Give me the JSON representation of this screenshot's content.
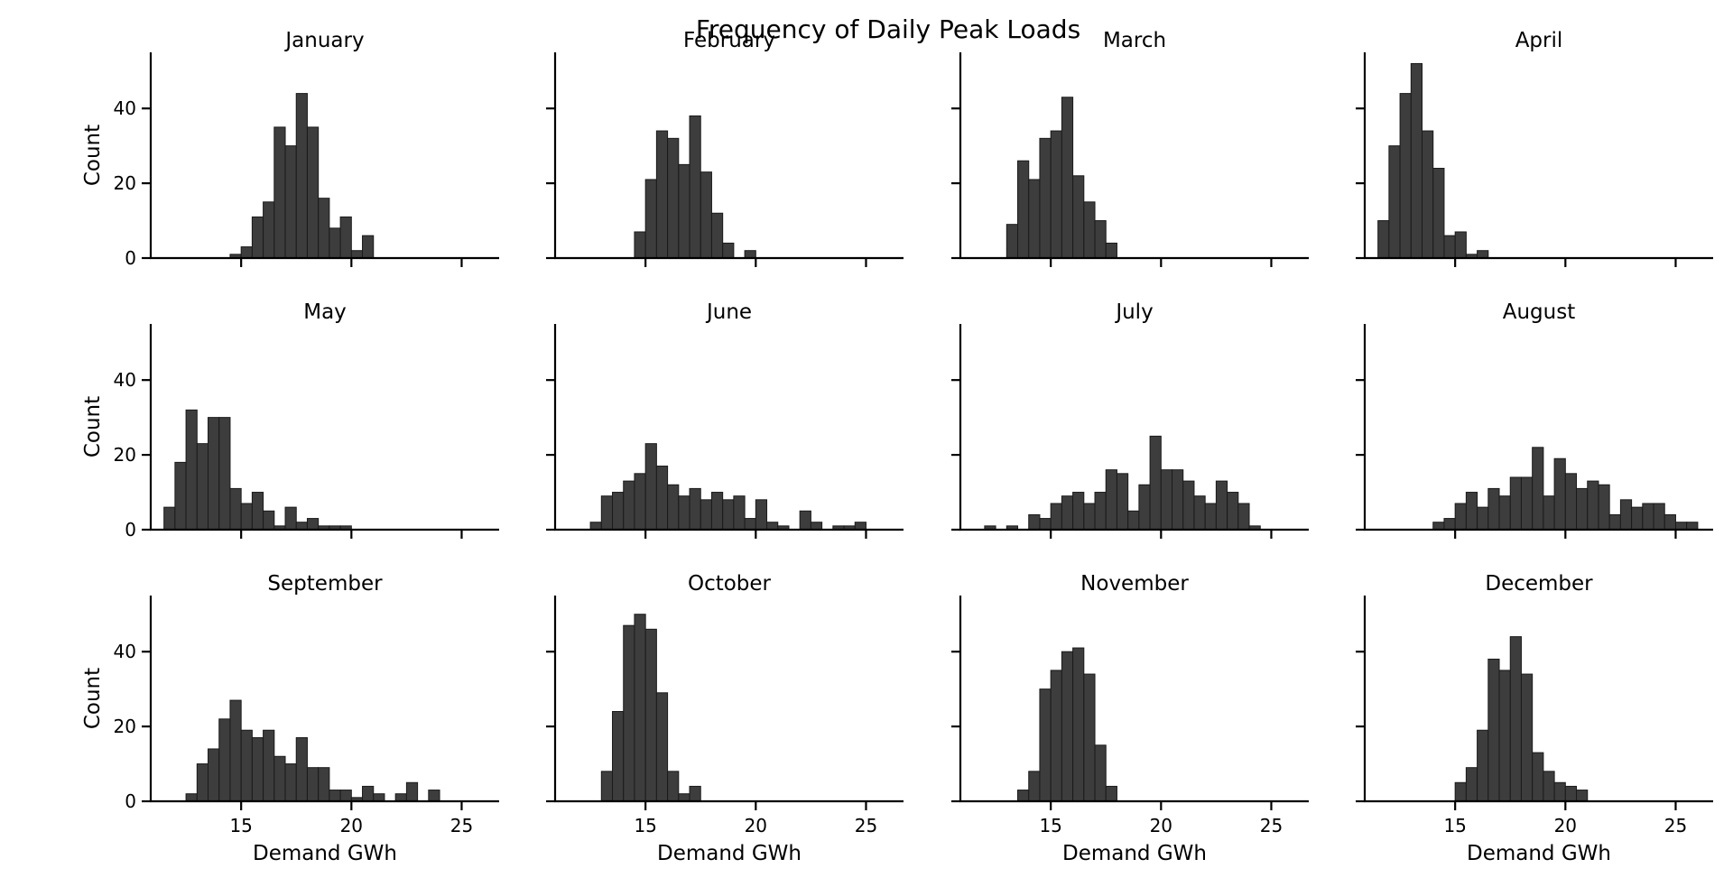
{
  "chart_data": {
    "type": "bar",
    "title": "Frequency of Daily Peak Loads",
    "xlabel": "Demand GWh",
    "ylabel": "Count",
    "xlim": [
      10.9,
      26.7
    ],
    "ylim": [
      0,
      55
    ],
    "xticks": [
      15,
      20,
      25
    ],
    "yticks": [
      0,
      20,
      40
    ],
    "bin_width": 0.5,
    "bar_color": "#3d3d3d",
    "grid": false,
    "legend": "none",
    "panels": [
      {
        "name": "January",
        "bins": [
          [
            14.5,
            1
          ],
          [
            15.0,
            3
          ],
          [
            15.5,
            11
          ],
          [
            16.0,
            15
          ],
          [
            16.5,
            35
          ],
          [
            17.0,
            30
          ],
          [
            17.5,
            44
          ],
          [
            18.0,
            35
          ],
          [
            18.5,
            16
          ],
          [
            19.0,
            8
          ],
          [
            19.5,
            11
          ],
          [
            20.0,
            2
          ],
          [
            20.5,
            6
          ]
        ]
      },
      {
        "name": "February",
        "bins": [
          [
            14.5,
            7
          ],
          [
            15.0,
            21
          ],
          [
            15.5,
            34
          ],
          [
            16.0,
            32
          ],
          [
            16.5,
            25
          ],
          [
            17.0,
            38
          ],
          [
            17.5,
            23
          ],
          [
            18.0,
            12
          ],
          [
            18.5,
            4
          ],
          [
            19.0,
            0
          ],
          [
            19.5,
            2
          ]
        ]
      },
      {
        "name": "March",
        "bins": [
          [
            13.0,
            9
          ],
          [
            13.5,
            26
          ],
          [
            14.0,
            21
          ],
          [
            14.5,
            32
          ],
          [
            15.0,
            34
          ],
          [
            15.5,
            43
          ],
          [
            16.0,
            22
          ],
          [
            16.5,
            15
          ],
          [
            17.0,
            10
          ],
          [
            17.5,
            4
          ]
        ]
      },
      {
        "name": "April",
        "bins": [
          [
            11.5,
            10
          ],
          [
            12.0,
            30
          ],
          [
            12.5,
            44
          ],
          [
            13.0,
            52
          ],
          [
            13.5,
            34
          ],
          [
            14.0,
            24
          ],
          [
            14.5,
            6
          ],
          [
            15.0,
            7
          ],
          [
            15.5,
            1
          ],
          [
            16.0,
            2
          ]
        ]
      },
      {
        "name": "May",
        "bins": [
          [
            11.5,
            6
          ],
          [
            12.0,
            18
          ],
          [
            12.5,
            32
          ],
          [
            13.0,
            23
          ],
          [
            13.5,
            30
          ],
          [
            14.0,
            30
          ],
          [
            14.5,
            11
          ],
          [
            15.0,
            7
          ],
          [
            15.5,
            10
          ],
          [
            16.0,
            5
          ],
          [
            16.5,
            1
          ],
          [
            17.0,
            6
          ],
          [
            17.5,
            2
          ],
          [
            18.0,
            3
          ],
          [
            18.5,
            1
          ],
          [
            19.0,
            1
          ],
          [
            19.5,
            1
          ]
        ]
      },
      {
        "name": "June",
        "bins": [
          [
            12.5,
            2
          ],
          [
            13.0,
            9
          ],
          [
            13.5,
            10
          ],
          [
            14.0,
            13
          ],
          [
            14.5,
            15
          ],
          [
            15.0,
            23
          ],
          [
            15.5,
            17
          ],
          [
            16.0,
            12
          ],
          [
            16.5,
            9
          ],
          [
            17.0,
            11
          ],
          [
            17.5,
            8
          ],
          [
            18.0,
            10
          ],
          [
            18.5,
            8
          ],
          [
            19.0,
            9
          ],
          [
            19.5,
            3
          ],
          [
            20.0,
            8
          ],
          [
            20.5,
            2
          ],
          [
            21.0,
            1
          ],
          [
            21.5,
            0
          ],
          [
            22.0,
            5
          ],
          [
            22.5,
            2
          ],
          [
            23.0,
            0
          ],
          [
            23.5,
            1
          ],
          [
            24.0,
            1
          ],
          [
            24.5,
            2
          ]
        ]
      },
      {
        "name": "July",
        "bins": [
          [
            12.0,
            1
          ],
          [
            12.5,
            0
          ],
          [
            13.0,
            1
          ],
          [
            13.5,
            0
          ],
          [
            14.0,
            4
          ],
          [
            14.5,
            3
          ],
          [
            15.0,
            7
          ],
          [
            15.5,
            9
          ],
          [
            16.0,
            10
          ],
          [
            16.5,
            7
          ],
          [
            17.0,
            10
          ],
          [
            17.5,
            16
          ],
          [
            18.0,
            15
          ],
          [
            18.5,
            5
          ],
          [
            19.0,
            12
          ],
          [
            19.5,
            25
          ],
          [
            20.0,
            16
          ],
          [
            20.5,
            16
          ],
          [
            21.0,
            13
          ],
          [
            21.5,
            9
          ],
          [
            22.0,
            7
          ],
          [
            22.5,
            13
          ],
          [
            23.0,
            10
          ],
          [
            23.5,
            7
          ],
          [
            24.0,
            1
          ]
        ]
      },
      {
        "name": "August",
        "bins": [
          [
            14.0,
            2
          ],
          [
            14.5,
            3
          ],
          [
            15.0,
            7
          ],
          [
            15.5,
            10
          ],
          [
            16.0,
            6
          ],
          [
            16.5,
            11
          ],
          [
            17.0,
            9
          ],
          [
            17.5,
            14
          ],
          [
            18.0,
            14
          ],
          [
            18.5,
            22
          ],
          [
            19.0,
            9
          ],
          [
            19.5,
            19
          ],
          [
            20.0,
            15
          ],
          [
            20.5,
            11
          ],
          [
            21.0,
            13
          ],
          [
            21.5,
            12
          ],
          [
            22.0,
            4
          ],
          [
            22.5,
            8
          ],
          [
            23.0,
            6
          ],
          [
            23.5,
            7
          ],
          [
            24.0,
            7
          ],
          [
            24.5,
            4
          ],
          [
            25.0,
            2
          ],
          [
            25.5,
            2
          ]
        ]
      },
      {
        "name": "September",
        "bins": [
          [
            12.5,
            2
          ],
          [
            13.0,
            10
          ],
          [
            13.5,
            14
          ],
          [
            14.0,
            22
          ],
          [
            14.5,
            27
          ],
          [
            15.0,
            19
          ],
          [
            15.5,
            17
          ],
          [
            16.0,
            19
          ],
          [
            16.5,
            12
          ],
          [
            17.0,
            10
          ],
          [
            17.5,
            17
          ],
          [
            18.0,
            9
          ],
          [
            18.5,
            9
          ],
          [
            19.0,
            3
          ],
          [
            19.5,
            3
          ],
          [
            20.0,
            1
          ],
          [
            20.5,
            4
          ],
          [
            21.0,
            2
          ],
          [
            21.5,
            0
          ],
          [
            22.0,
            2
          ],
          [
            22.5,
            5
          ],
          [
            23.0,
            0
          ],
          [
            23.5,
            3
          ]
        ]
      },
      {
        "name": "October",
        "bins": [
          [
            13.0,
            8
          ],
          [
            13.5,
            24
          ],
          [
            14.0,
            47
          ],
          [
            14.5,
            50
          ],
          [
            15.0,
            46
          ],
          [
            15.5,
            29
          ],
          [
            16.0,
            8
          ],
          [
            16.5,
            2
          ],
          [
            17.0,
            4
          ]
        ]
      },
      {
        "name": "November",
        "bins": [
          [
            13.5,
            3
          ],
          [
            14.0,
            8
          ],
          [
            14.5,
            30
          ],
          [
            15.0,
            35
          ],
          [
            15.5,
            40
          ],
          [
            16.0,
            41
          ],
          [
            16.5,
            34
          ],
          [
            17.0,
            15
          ],
          [
            17.5,
            4
          ]
        ]
      },
      {
        "name": "December",
        "bins": [
          [
            15.0,
            5
          ],
          [
            15.5,
            9
          ],
          [
            16.0,
            19
          ],
          [
            16.5,
            38
          ],
          [
            17.0,
            35
          ],
          [
            17.5,
            44
          ],
          [
            18.0,
            34
          ],
          [
            18.5,
            13
          ],
          [
            19.0,
            8
          ],
          [
            19.5,
            5
          ],
          [
            20.0,
            4
          ],
          [
            20.5,
            3
          ]
        ]
      }
    ]
  }
}
